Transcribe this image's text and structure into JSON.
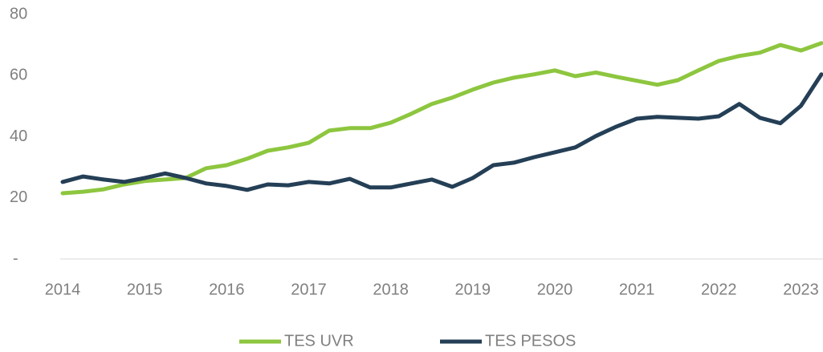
{
  "chart_data": {
    "type": "line",
    "x": [
      2014,
      2014.25,
      2014.5,
      2014.75,
      2015,
      2015.25,
      2015.5,
      2015.75,
      2016,
      2016.25,
      2016.5,
      2016.75,
      2017,
      2017.25,
      2017.5,
      2017.75,
      2018,
      2018.25,
      2018.5,
      2018.75,
      2019,
      2019.25,
      2019.5,
      2019.75,
      2020,
      2020.25,
      2020.5,
      2020.75,
      2021,
      2021.25,
      2021.5,
      2021.75,
      2022,
      2022.25,
      2022.5,
      2022.75,
      2023,
      2023.25
    ],
    "series": [
      {
        "name": "TES UVR",
        "color": "#8dc63f",
        "values": [
          21.5,
          22,
          22.8,
          24.4,
          25.5,
          26,
          26.5,
          29.7,
          30.7,
          32.8,
          35.4,
          36.5,
          38,
          42,
          42.8,
          42.8,
          44.6,
          47.5,
          50.7,
          52.8,
          55.4,
          57.7,
          59.3,
          60.4,
          61.7,
          59.8,
          61,
          59.6,
          58.3,
          57,
          58.5,
          61.7,
          64.8,
          66.4,
          67.5,
          70,
          68.2,
          70.6
        ]
      },
      {
        "name": "TES PESOS",
        "color": "#243f56",
        "values": [
          25.2,
          27,
          26,
          25.2,
          26.5,
          28,
          26.5,
          24.7,
          23.9,
          22.6,
          24.4,
          24.1,
          25.2,
          24.7,
          26.2,
          23.4,
          23.4,
          24.7,
          26,
          23.6,
          26.5,
          30.7,
          31.5,
          33.3,
          34.9,
          36.5,
          40.2,
          43.3,
          45.9,
          46.5,
          46.2,
          45.9,
          46.7,
          50.7,
          46.2,
          44.4,
          50.1,
          60.4
        ]
      }
    ],
    "xlim": [
      2014,
      2023.25
    ],
    "xticks": [
      2014,
      2015,
      2016,
      2017,
      2018,
      2019,
      2020,
      2021,
      2022,
      2023
    ],
    "ylim": [
      0,
      80
    ],
    "yticks": [
      {
        "value": 0,
        "label": "-"
      },
      20,
      40,
      60,
      80
    ],
    "grid": false,
    "legend": "bottom"
  }
}
